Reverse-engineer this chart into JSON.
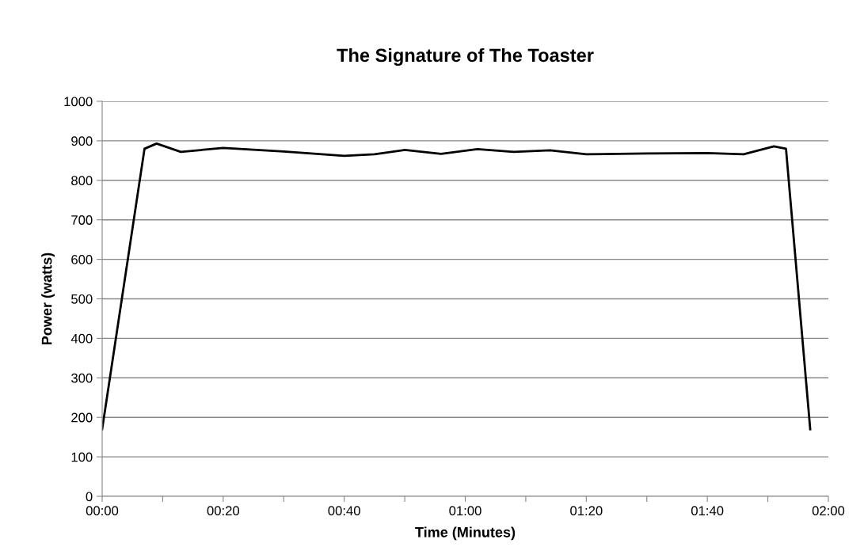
{
  "chart_data": {
    "type": "line",
    "title": "The Signature of The Toaster",
    "xlabel": "Time (Minutes)",
    "ylabel": "Power (watts)",
    "x": [
      0,
      7,
      9,
      13,
      20,
      30,
      40,
      45,
      50,
      56,
      62,
      68,
      74,
      80,
      90,
      100,
      106,
      111,
      113,
      117
    ],
    "series": [
      {
        "color": "#000000",
        "values": [
          170,
          880,
          893,
          872,
          882,
          873,
          862,
          866,
          877,
          867,
          879,
          872,
          876,
          866,
          868,
          869,
          866,
          886,
          880,
          170
        ]
      }
    ],
    "xlim": [
      0,
      120
    ],
    "xticks": [
      {
        "value": 0,
        "label": "00:00"
      },
      {
        "value": 10,
        "label": null
      },
      {
        "value": 20,
        "label": "00:20"
      },
      {
        "value": 30,
        "label": null
      },
      {
        "value": 40,
        "label": "00:40"
      },
      {
        "value": 50,
        "label": null
      },
      {
        "value": 60,
        "label": "01:00"
      },
      {
        "value": 70,
        "label": null
      },
      {
        "value": 80,
        "label": "01:20"
      },
      {
        "value": 90,
        "label": null
      },
      {
        "value": 100,
        "label": "01:40"
      },
      {
        "value": 110,
        "label": null
      },
      {
        "value": 120,
        "label": "02:00"
      }
    ],
    "ylim": [
      0,
      1000
    ],
    "yticks": [
      0,
      100,
      200,
      300,
      400,
      500,
      600,
      700,
      800,
      900,
      1000
    ],
    "grid": "y",
    "legend": false,
    "marker": "none",
    "line_style": "solid"
  }
}
